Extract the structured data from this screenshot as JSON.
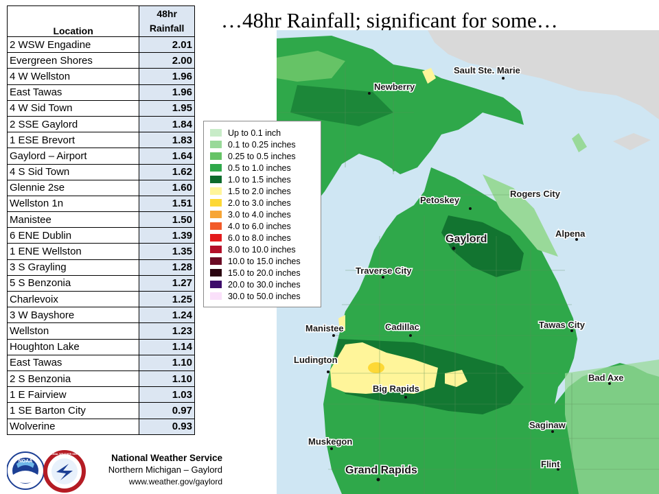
{
  "title": "…48hr Rainfall; significant for some…",
  "table": {
    "headers": {
      "location": "Location",
      "rainfall_line1": "48hr",
      "rainfall_line2": "Rainfall"
    },
    "rows": [
      {
        "location": "2 WSW Engadine",
        "value": "2.01"
      },
      {
        "location": "Evergreen Shores",
        "value": "2.00"
      },
      {
        "location": "4 W Wellston",
        "value": "1.96"
      },
      {
        "location": "East Tawas",
        "value": "1.96"
      },
      {
        "location": "4 W Sid Town",
        "value": "1.95"
      },
      {
        "location": "2 SSE Gaylord",
        "value": "1.84"
      },
      {
        "location": "1 ESE Brevort",
        "value": "1.83"
      },
      {
        "location": "Gaylord – Airport",
        "value": "1.64"
      },
      {
        "location": "4 S Sid Town",
        "value": "1.62"
      },
      {
        "location": "Glennie 2se",
        "value": "1.60"
      },
      {
        "location": "Wellston 1n",
        "value": "1.51"
      },
      {
        "location": "Manistee",
        "value": "1.50"
      },
      {
        "location": "6 ENE Dublin",
        "value": "1.39"
      },
      {
        "location": "1 ENE Wellston",
        "value": "1.35"
      },
      {
        "location": "3 S Grayling",
        "value": "1.28"
      },
      {
        "location": "5 S Benzonia",
        "value": "1.27"
      },
      {
        "location": "Charlevoix",
        "value": "1.25"
      },
      {
        "location": "3 W Bayshore",
        "value": "1.24"
      },
      {
        "location": "Wellston",
        "value": "1.23"
      },
      {
        "location": "Houghton Lake",
        "value": "1.14"
      },
      {
        "location": "East Tawas",
        "value": "1.10"
      },
      {
        "location": "2 S Benzonia",
        "value": "1.10"
      },
      {
        "location": "1 E Fairview",
        "value": "1.03"
      },
      {
        "location": "1 SE Barton City",
        "value": "0.97"
      },
      {
        "location": "Wolverine",
        "value": "0.93"
      }
    ]
  },
  "legend": [
    {
      "label": "Up to 0.1 inch",
      "color": "#c8ecc8"
    },
    {
      "label": "0.1 to 0.25 inches",
      "color": "#99d999"
    },
    {
      "label": "0.25 to 0.5 inches",
      "color": "#66c366"
    },
    {
      "label": "0.5 to 1.0 inches",
      "color": "#2fa84a"
    },
    {
      "label": "1.0 to 1.5 inches",
      "color": "#0d6b2c"
    },
    {
      "label": "1.5 to 2.0 inches",
      "color": "#fff59a"
    },
    {
      "label": "2.0 to 3.0 inches",
      "color": "#fdd835"
    },
    {
      "label": "3.0 to 4.0 inches",
      "color": "#f7a535"
    },
    {
      "label": "4.0 to 6.0 inches",
      "color": "#f25a28"
    },
    {
      "label": "6.0 to 8.0 inches",
      "color": "#e31a1c"
    },
    {
      "label": "8.0 to 10.0 inches",
      "color": "#b30f2a"
    },
    {
      "label": "10.0 to 15.0 inches",
      "color": "#6b0a24"
    },
    {
      "label": "15.0 to 20.0 inches",
      "color": "#2b0510"
    },
    {
      "label": "20.0 to 30.0 inches",
      "color": "#3d0c6a"
    },
    {
      "label": "30.0 to 50.0 inches",
      "color": "#fae0fa"
    }
  ],
  "map": {
    "colors": {
      "water": "#cfe6f3",
      "land_other": "#d9d9d9"
    },
    "places": {
      "sault_ste_marie": "Sault Ste. Marie",
      "newberry": "Newberry",
      "petoskey": "Petoskey",
      "rogers_city": "Rogers City",
      "gaylord": "Gaylord",
      "alpena": "Alpena",
      "traverse_city": "Traverse City",
      "manistee": "Manistee",
      "cadillac": "Cadillac",
      "tawas_city": "Tawas City",
      "ludington": "Ludington",
      "bad_axe": "Bad Axe",
      "big_rapids": "Big Rapids",
      "saginaw": "Saginaw",
      "muskegon": "Muskegon",
      "flint": "Flint",
      "grand_rapids": "Grand Rapids"
    }
  },
  "footer": {
    "name": "National Weather Service",
    "office": "Northern Michigan – Gaylord",
    "url": "www.weather.gov/gaylord",
    "noaa_logo_text": "NOAA",
    "nws_logo_text": "NATIONAL WEATHER SERVICE"
  }
}
